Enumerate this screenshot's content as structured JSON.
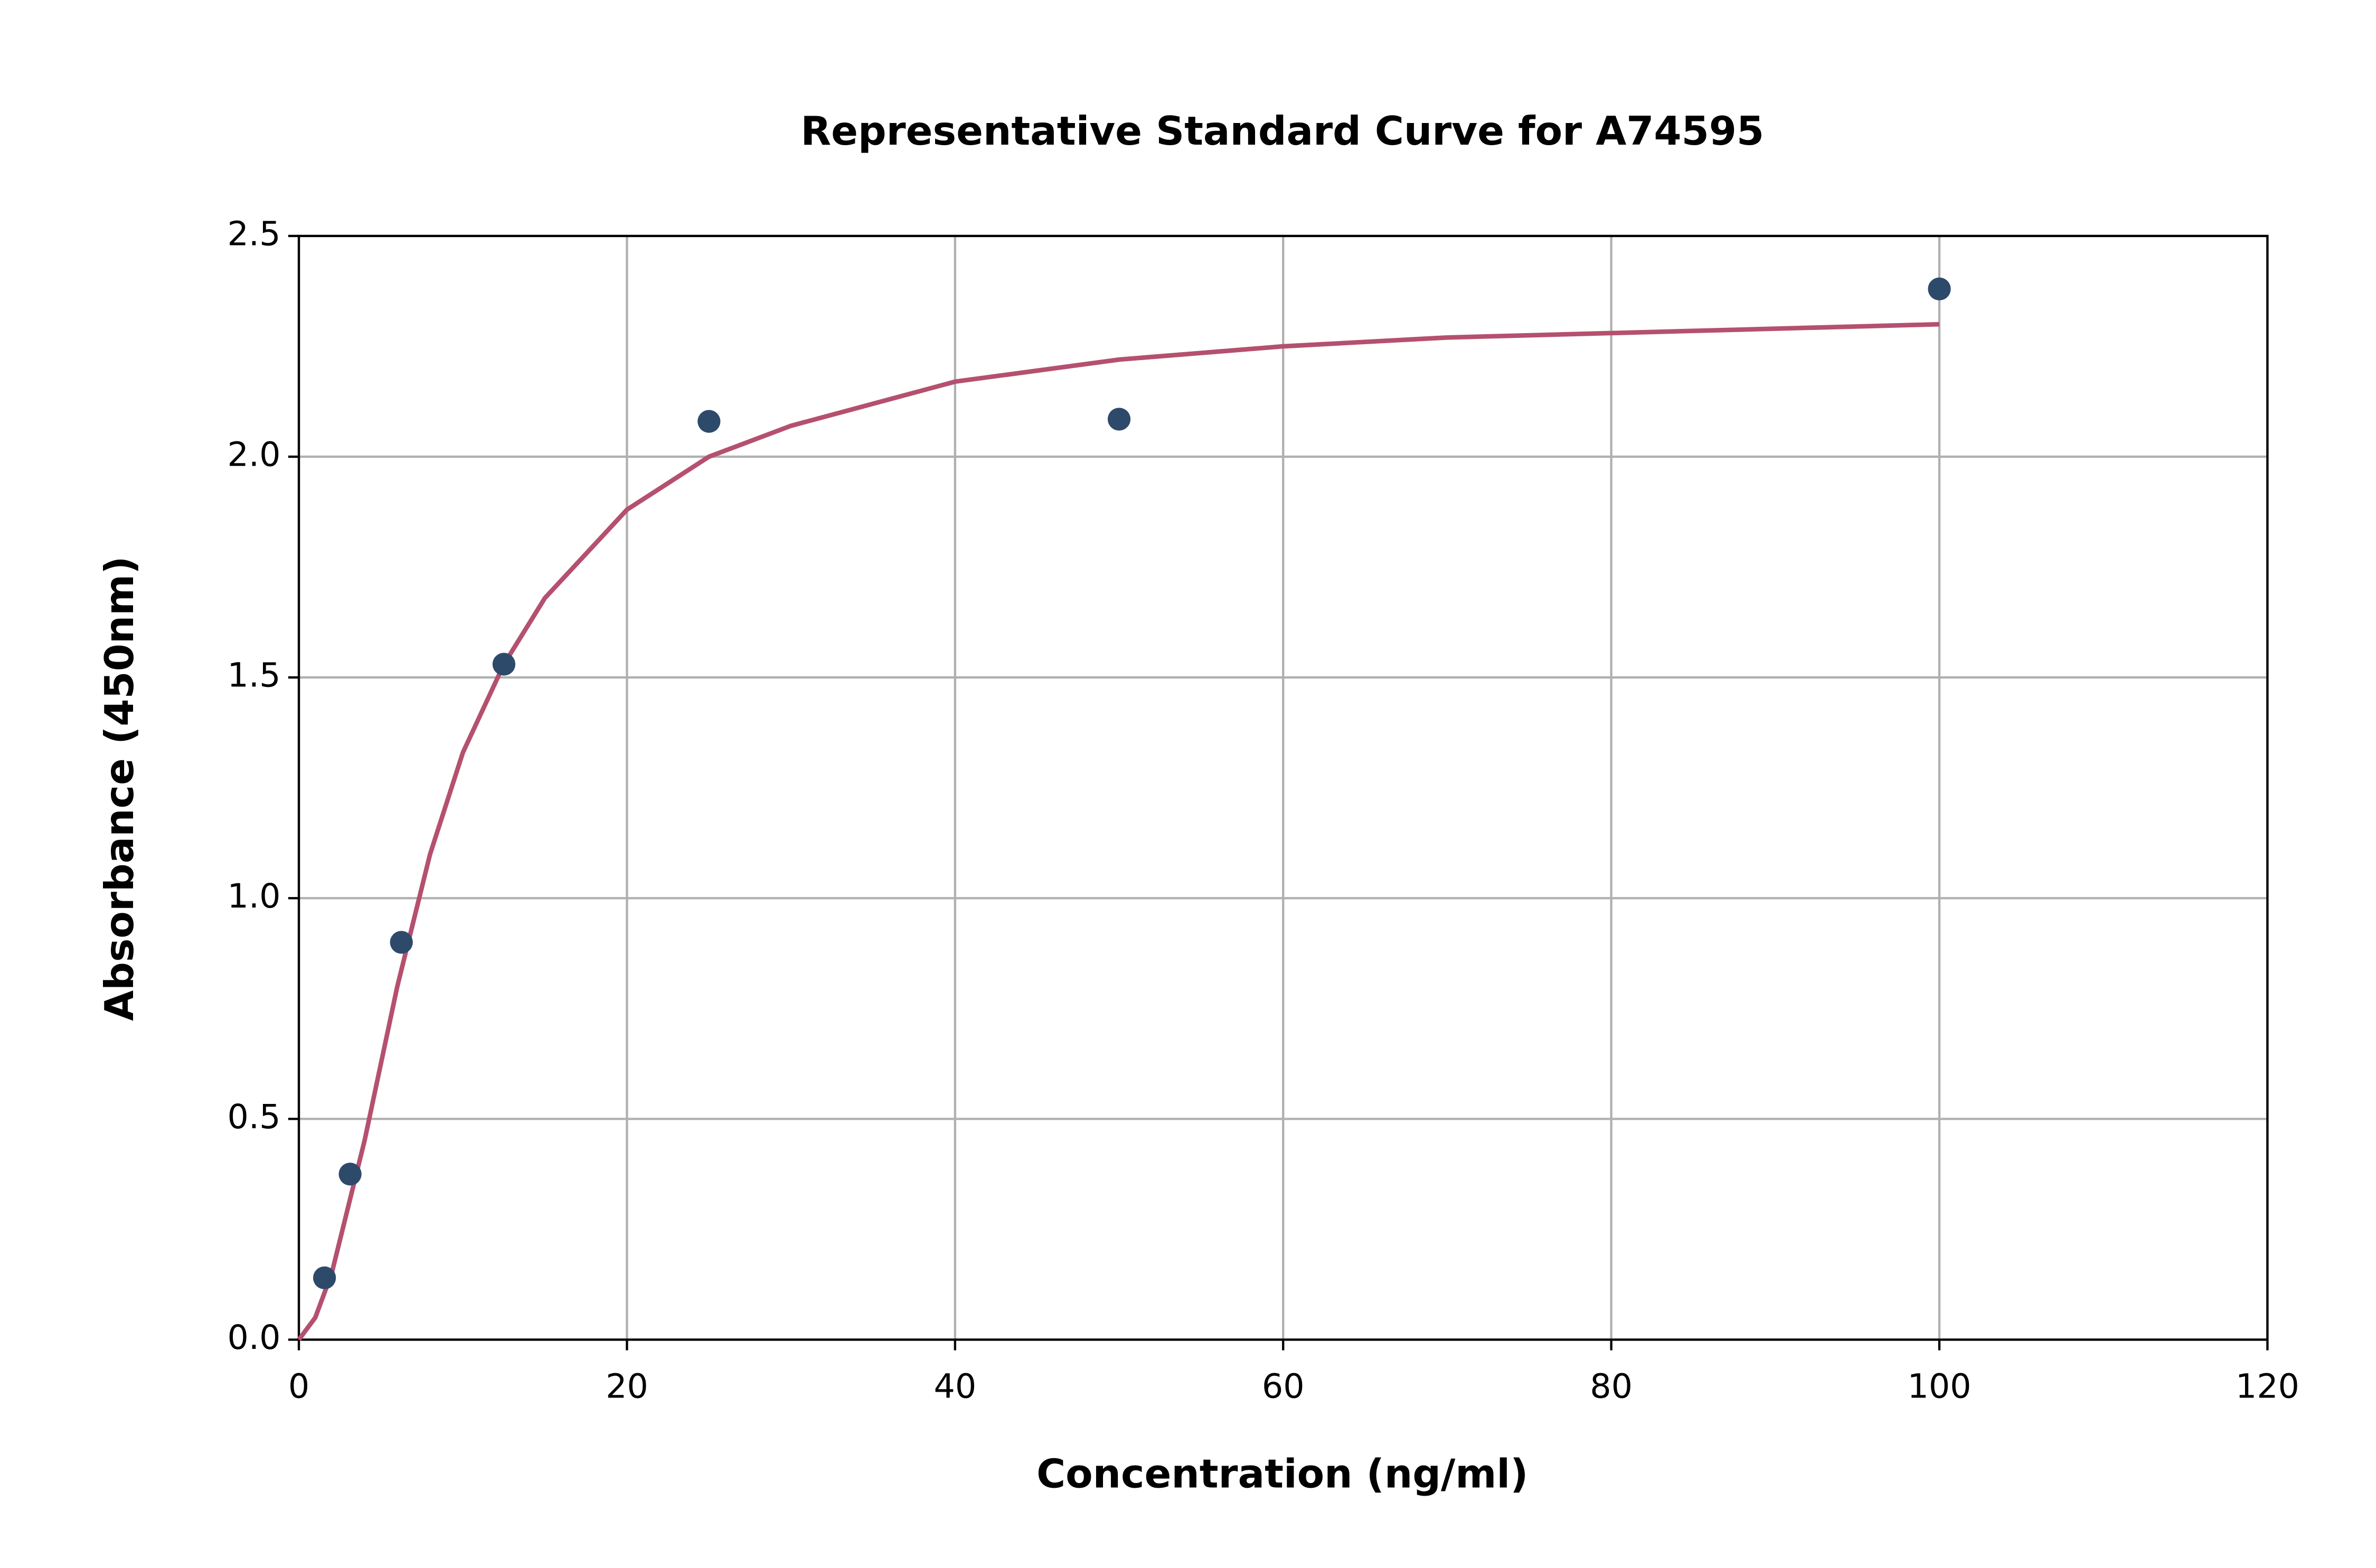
{
  "chart_data": {
    "type": "scatter",
    "title": "Representative Standard Curve for A74595",
    "x_label": "Concentration (ng/ml)",
    "y_label": "Absorbance (450nm)",
    "xlim": [
      0,
      120
    ],
    "ylim": [
      0,
      2.5
    ],
    "xticks": [
      0,
      20,
      40,
      60,
      80,
      100,
      120
    ],
    "yticks": [
      {
        "value": 0,
        "label": "0.0"
      },
      {
        "value": 0.5,
        "label": "0.5"
      },
      {
        "value": 1,
        "label": "1.0"
      },
      {
        "value": 1.5,
        "label": "1.5"
      },
      {
        "value": 2,
        "label": "2.0"
      },
      {
        "value": 2.5,
        "label": "2.5"
      }
    ],
    "grid": true,
    "series": [
      {
        "style": "line",
        "color": "#b5506f",
        "x": [
          0,
          1,
          2,
          4,
          6,
          8,
          10,
          12.5,
          15,
          20,
          25,
          30,
          40,
          50,
          60,
          70,
          80,
          100
        ],
        "values": [
          0,
          0.05,
          0.15,
          0.45,
          0.8,
          1.1,
          1.33,
          1.53,
          1.68,
          1.88,
          2.0,
          2.07,
          2.17,
          2.22,
          2.25,
          2.27,
          2.28,
          2.3
        ]
      },
      {
        "style": "markers",
        "color": "#2e4a6b",
        "x": [
          1.5625,
          3.125,
          6.25,
          12.5,
          25,
          50,
          100
        ],
        "values": [
          0.14,
          0.375,
          0.9,
          1.53,
          2.08,
          2.085,
          2.38
        ]
      }
    ]
  }
}
